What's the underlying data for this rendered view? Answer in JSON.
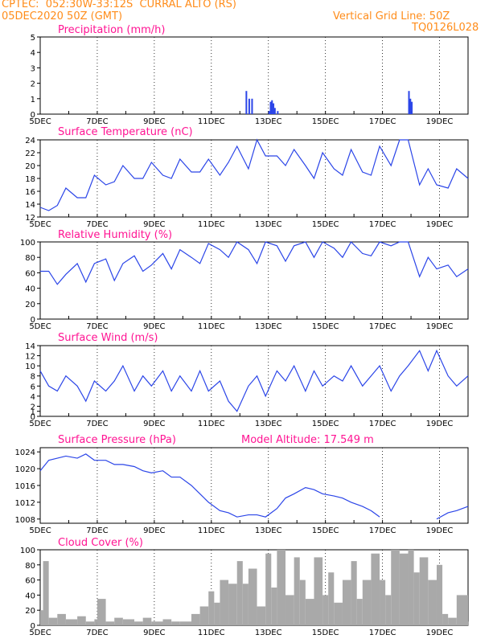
{
  "header": {
    "station": "CPTEC:  052:30W-33:12S  CURRAL ALTO (RS)",
    "date": "05DEC2020 50Z (GMT)",
    "grid_line": "Vertical Grid Line: 50Z",
    "code": "TQ0126L028"
  },
  "colors": {
    "line": "#2b45e8",
    "title": "#ff1493",
    "header": "#ff8c1a",
    "cloud": "#a9a9a9"
  },
  "chart_data": [
    {
      "type": "bar",
      "title": "Precipitation (mm/h)",
      "ylim": [
        0,
        5
      ],
      "yticks": [
        0,
        1,
        2,
        3,
        4,
        5
      ],
      "x_ticks": [
        "5DEC",
        "7DEC",
        "9DEC",
        "11DEC",
        "13DEC",
        "15DEC",
        "17DEC",
        "19DEC"
      ],
      "x_domain_days": [
        5,
        20
      ],
      "x": [
        12.2,
        12.3,
        12.4,
        13.0,
        13.05,
        13.1,
        13.15,
        13.2,
        13.3,
        17.9,
        17.95,
        18.0
      ],
      "values": [
        1.5,
        1.0,
        1.0,
        0.2,
        0.8,
        0.9,
        0.7,
        0.4,
        0.2,
        1.5,
        1.0,
        0.8
      ]
    },
    {
      "type": "line",
      "title": "Surface Temperature (nC)",
      "ylim": [
        12,
        24
      ],
      "yticks": [
        12,
        14,
        16,
        18,
        20,
        22,
        24
      ],
      "x_ticks": [
        "5DEC",
        "7DEC",
        "9DEC",
        "11DEC",
        "13DEC",
        "15DEC",
        "17DEC",
        "19DEC"
      ],
      "x_domain_days": [
        5,
        20
      ],
      "x": [
        5.0,
        5.3,
        5.6,
        5.9,
        6.3,
        6.6,
        6.9,
        7.3,
        7.6,
        7.9,
        8.3,
        8.6,
        8.9,
        9.3,
        9.6,
        9.9,
        10.3,
        10.6,
        10.9,
        11.3,
        11.6,
        11.9,
        12.3,
        12.6,
        12.9,
        13.3,
        13.6,
        13.9,
        14.3,
        14.6,
        14.9,
        15.3,
        15.6,
        15.9,
        16.3,
        16.6,
        16.9,
        17.3,
        17.6,
        17.9,
        18.3,
        18.6,
        18.9,
        19.3,
        19.6,
        20.0
      ],
      "values": [
        13.5,
        13.0,
        13.8,
        16.5,
        15.0,
        15.0,
        18.5,
        17.0,
        17.5,
        20.0,
        18.0,
        18.0,
        20.5,
        18.5,
        18.0,
        21.0,
        19.0,
        19.0,
        21.0,
        18.5,
        20.5,
        23.0,
        19.5,
        24.0,
        21.5,
        21.5,
        20.0,
        22.5,
        20.0,
        18.0,
        22.0,
        19.5,
        18.5,
        22.5,
        19.0,
        18.5,
        23.0,
        20.0,
        24.0,
        24.0,
        17.0,
        19.5,
        17.0,
        16.5,
        19.5,
        18.0
      ]
    },
    {
      "type": "line",
      "title": "Relative Humidity (%)",
      "ylim": [
        0,
        100
      ],
      "yticks": [
        0,
        20,
        40,
        60,
        80,
        100
      ],
      "x_ticks": [
        "5DEC",
        "7DEC",
        "9DEC",
        "11DEC",
        "13DEC",
        "15DEC",
        "17DEC",
        "19DEC"
      ],
      "x_domain_days": [
        5,
        20
      ],
      "x": [
        5.0,
        5.3,
        5.6,
        5.9,
        6.3,
        6.6,
        6.9,
        7.3,
        7.6,
        7.9,
        8.3,
        8.6,
        8.9,
        9.3,
        9.6,
        9.9,
        10.3,
        10.6,
        10.9,
        11.3,
        11.6,
        11.9,
        12.3,
        12.6,
        12.9,
        13.3,
        13.6,
        13.9,
        14.3,
        14.6,
        14.9,
        15.3,
        15.6,
        15.9,
        16.3,
        16.6,
        16.9,
        17.3,
        17.6,
        17.9,
        18.3,
        18.6,
        18.9,
        19.3,
        19.6,
        20.0
      ],
      "values": [
        62,
        62,
        45,
        58,
        72,
        48,
        72,
        78,
        50,
        72,
        82,
        62,
        70,
        85,
        65,
        90,
        80,
        72,
        98,
        90,
        80,
        100,
        90,
        72,
        100,
        95,
        75,
        95,
        100,
        80,
        100,
        92,
        80,
        100,
        85,
        82,
        100,
        95,
        100,
        100,
        55,
        80,
        65,
        70,
        55,
        65
      ]
    },
    {
      "type": "line",
      "title": "Surface Wind (m/s)",
      "ylim": [
        0,
        14
      ],
      "yticks": [
        0,
        1,
        2,
        4,
        6,
        8,
        10,
        12,
        14
      ],
      "x_ticks": [
        "5DEC",
        "7DEC",
        "9DEC",
        "11DEC",
        "13DEC",
        "15DEC",
        "17DEC",
        "19DEC"
      ],
      "x_domain_days": [
        5,
        20
      ],
      "x": [
        5.0,
        5.3,
        5.6,
        5.9,
        6.3,
        6.6,
        6.9,
        7.3,
        7.6,
        7.9,
        8.3,
        8.6,
        8.9,
        9.3,
        9.6,
        9.9,
        10.3,
        10.6,
        10.9,
        11.3,
        11.6,
        11.9,
        12.3,
        12.6,
        12.9,
        13.3,
        13.6,
        13.9,
        14.3,
        14.6,
        14.9,
        15.3,
        15.6,
        15.9,
        16.3,
        16.6,
        16.9,
        17.3,
        17.6,
        17.9,
        18.3,
        18.6,
        18.9,
        19.3,
        19.6,
        20.0
      ],
      "values": [
        9,
        6,
        5,
        8,
        6,
        3,
        7,
        5,
        7,
        10,
        5,
        8,
        6,
        9,
        5,
        8,
        5,
        9,
        5,
        7,
        3,
        1,
        6,
        8,
        4,
        9,
        7,
        10,
        5,
        9,
        6,
        8,
        7,
        10,
        6,
        8,
        10,
        5,
        8,
        10,
        13,
        9,
        13,
        8,
        6,
        8
      ]
    },
    {
      "type": "line",
      "title": "Surface Pressure (hPa)",
      "annotation": "Model Altitude: 17.549  m",
      "ylim": [
        1007,
        1025
      ],
      "yticks": [
        1008,
        1012,
        1016,
        1020,
        1024
      ],
      "x_ticks": [
        "5DEC",
        "7DEC",
        "9DEC",
        "11DEC",
        "13DEC",
        "15DEC",
        "17DEC",
        "19DEC"
      ],
      "x_domain_days": [
        5,
        20
      ],
      "x": [
        5.0,
        5.3,
        5.6,
        5.9,
        6.3,
        6.6,
        6.9,
        7.3,
        7.6,
        7.9,
        8.3,
        8.6,
        8.9,
        9.3,
        9.6,
        9.9,
        10.3,
        10.6,
        10.9,
        11.3,
        11.6,
        11.9,
        12.3,
        12.6,
        12.9,
        13.3,
        13.6,
        13.9,
        14.3,
        14.6,
        14.9,
        15.3,
        15.6,
        15.9,
        16.3,
        16.6,
        16.9,
        17.3,
        17.6,
        17.9,
        18.3,
        18.6,
        18.9,
        19.3,
        19.6,
        20.0
      ],
      "values": [
        1019.5,
        1022,
        1022.5,
        1023,
        1022.5,
        1023.5,
        1022,
        1022,
        1021,
        1021,
        1020.5,
        1019.5,
        1019,
        1019.5,
        1018,
        1018,
        1016,
        1014,
        1012,
        1010,
        1009.5,
        1008.5,
        1009,
        1009,
        1008.5,
        1010.5,
        1013,
        1014,
        1015.5,
        1015,
        1014,
        1013.5,
        1013,
        1012,
        1011,
        1010,
        1008.5,
        null,
        null,
        null,
        null,
        null,
        1008,
        1009.5,
        1010,
        1011
      ]
    },
    {
      "type": "area",
      "title": "Cloud Cover (%)",
      "ylim": [
        0,
        100
      ],
      "yticks": [
        0,
        20,
        40,
        60,
        80,
        100
      ],
      "x_ticks": [
        "5DEC",
        "7DEC",
        "9DEC",
        "11DEC",
        "13DEC",
        "15DEC",
        "17DEC",
        "19DEC"
      ],
      "x_domain_days": [
        5,
        20
      ],
      "x": [
        5.0,
        5.1,
        5.3,
        5.6,
        5.9,
        6.3,
        6.6,
        6.9,
        7.0,
        7.3,
        7.6,
        7.9,
        8.3,
        8.6,
        8.9,
        9.3,
        9.6,
        9.9,
        10.3,
        10.6,
        10.9,
        11.1,
        11.3,
        11.6,
        11.9,
        12.1,
        12.3,
        12.6,
        12.9,
        13.1,
        13.3,
        13.6,
        13.9,
        14.1,
        14.3,
        14.6,
        14.9,
        15.1,
        15.3,
        15.6,
        15.9,
        16.1,
        16.3,
        16.6,
        16.9,
        17.1,
        17.3,
        17.6,
        17.9,
        18.1,
        18.3,
        18.6,
        18.9,
        19.1,
        19.3,
        19.6,
        20.0
      ],
      "values": [
        20,
        85,
        10,
        15,
        8,
        12,
        5,
        8,
        35,
        5,
        10,
        8,
        5,
        10,
        5,
        8,
        5,
        5,
        15,
        25,
        45,
        30,
        60,
        55,
        85,
        55,
        75,
        25,
        95,
        50,
        100,
        40,
        90,
        60,
        35,
        90,
        40,
        70,
        30,
        60,
        85,
        35,
        60,
        95,
        60,
        40,
        100,
        95,
        100,
        70,
        90,
        60,
        80,
        15,
        10,
        40,
        5
      ]
    }
  ]
}
